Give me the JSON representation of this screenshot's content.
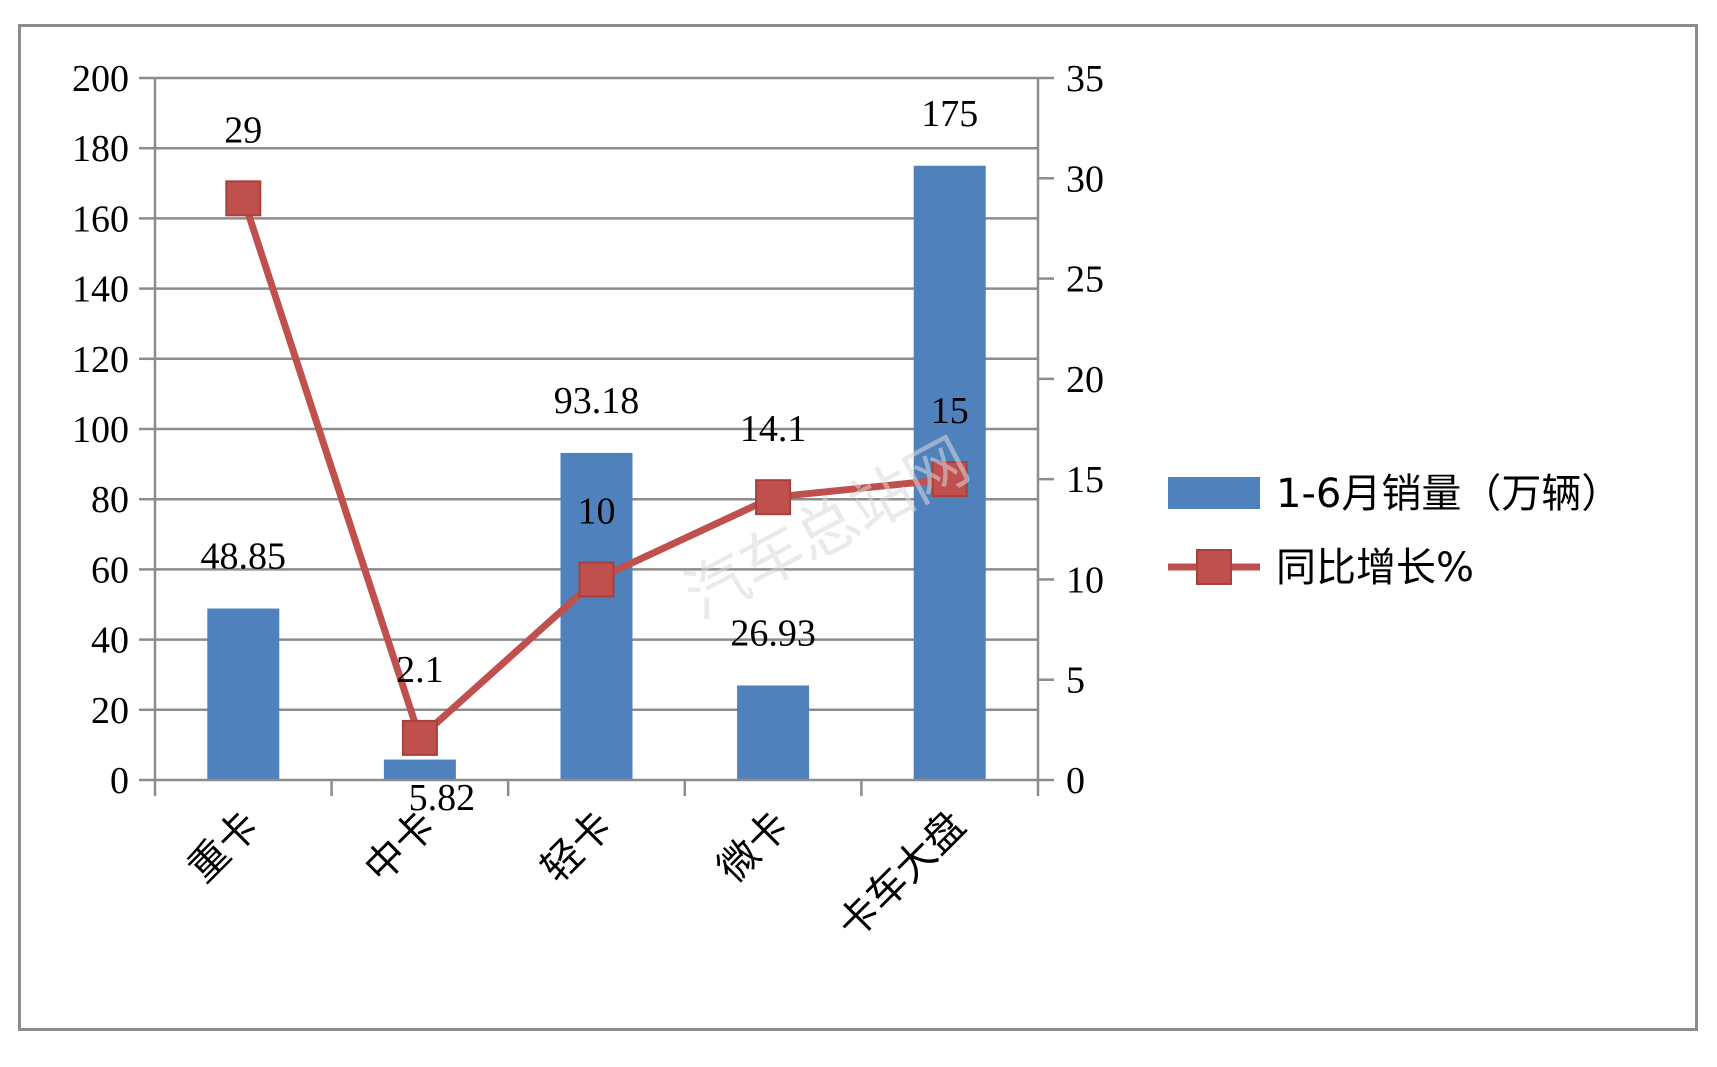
{
  "chart_data": {
    "type": "bar",
    "categories": [
      "重卡",
      "中卡",
      "轻卡",
      "微卡",
      "卡车大盘"
    ],
    "series": [
      {
        "name": "1-6月销量（万辆）",
        "type": "bar",
        "axis": "left",
        "values": [
          48.85,
          5.82,
          93.18,
          26.93,
          175
        ],
        "labels": [
          "48.85",
          "5.82",
          "93.18",
          "26.93",
          "175"
        ],
        "color": "#4F81BD"
      },
      {
        "name": "同比增长%",
        "type": "line",
        "axis": "right",
        "values": [
          29,
          2.1,
          10,
          14.1,
          15
        ],
        "labels": [
          "29",
          "2.1",
          "10",
          "14.1",
          "15"
        ],
        "color": "#C0504D"
      }
    ],
    "y_left": {
      "range": [
        0,
        200
      ],
      "ticks": [
        "0",
        "20",
        "40",
        "60",
        "80",
        "100",
        "120",
        "140",
        "160",
        "180",
        "200"
      ]
    },
    "y_right": {
      "range": [
        0,
        35
      ],
      "ticks": [
        "0",
        "5",
        "10",
        "15",
        "20",
        "25",
        "30",
        "35"
      ]
    },
    "grid": true,
    "legend_position": "right",
    "watermark": "汽车总站网"
  }
}
